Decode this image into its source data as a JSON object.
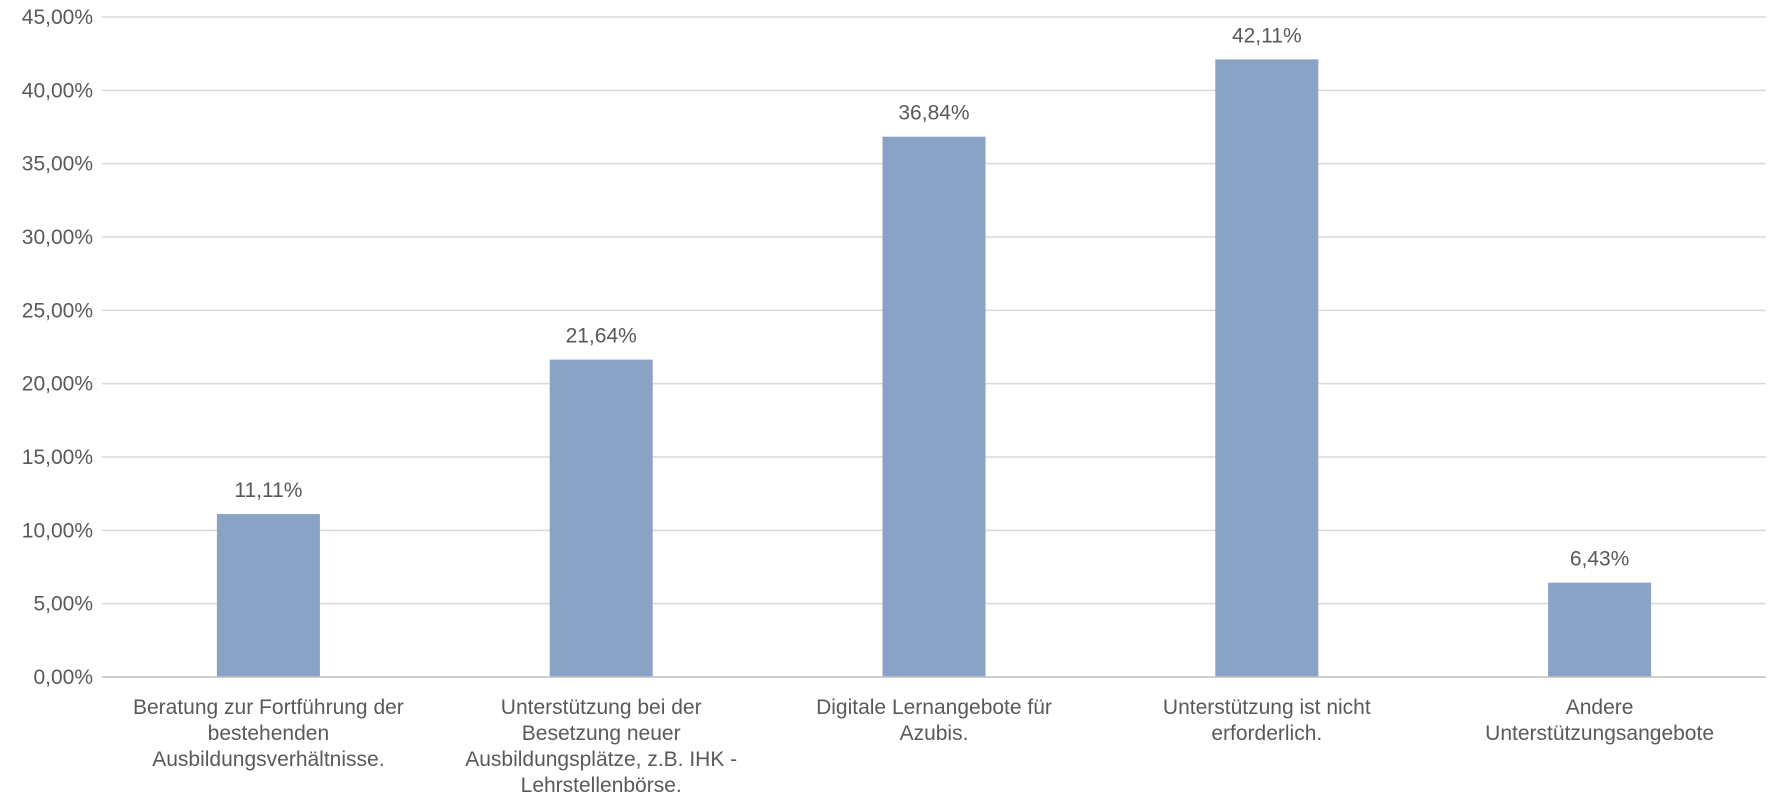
{
  "chart_data": {
    "type": "bar",
    "title": "",
    "xlabel": "",
    "ylabel": "",
    "ylim": [
      0,
      45
    ],
    "yticks": [
      0,
      5,
      10,
      15,
      20,
      25,
      30,
      35,
      40,
      45
    ],
    "ytick_labels": [
      "0,00%",
      "5,00%",
      "10,00%",
      "15,00%",
      "20,00%",
      "25,00%",
      "30,00%",
      "35,00%",
      "40,00%",
      "45,00%"
    ],
    "grid": true,
    "legend": false,
    "bar_color": "#8aa2c6",
    "categories": [
      "Beratung zur Fortführung der bestehenden Ausbildungsverhältnisse.",
      "Unterstützung bei der Besetzung neuer Ausbildungsplätze, z.B. IHK - Lehrstellenbörse.",
      "Digitale Lernangebote für Azubis.",
      "Unterstützung ist nicht erforderlich.",
      "Andere Unterstützungsangebote"
    ],
    "category_lines": [
      [
        "Beratung zur Fortführung der",
        "bestehenden",
        "Ausbildungsverhältnisse."
      ],
      [
        "Unterstützung bei der",
        "Besetzung neuer",
        "Ausbildungsplätze, z.B. IHK -",
        "Lehrstellenbörse."
      ],
      [
        "Digitale Lernangebote für",
        "Azubis."
      ],
      [
        "Unterstützung ist nicht",
        "erforderlich."
      ],
      [
        "Andere",
        "Unterstützungsangebote"
      ]
    ],
    "values": [
      11.11,
      21.64,
      36.84,
      42.11,
      6.43
    ],
    "value_labels": [
      "11,11%",
      "21,64%",
      "36,84%",
      "42,11%",
      "6,43%"
    ]
  }
}
